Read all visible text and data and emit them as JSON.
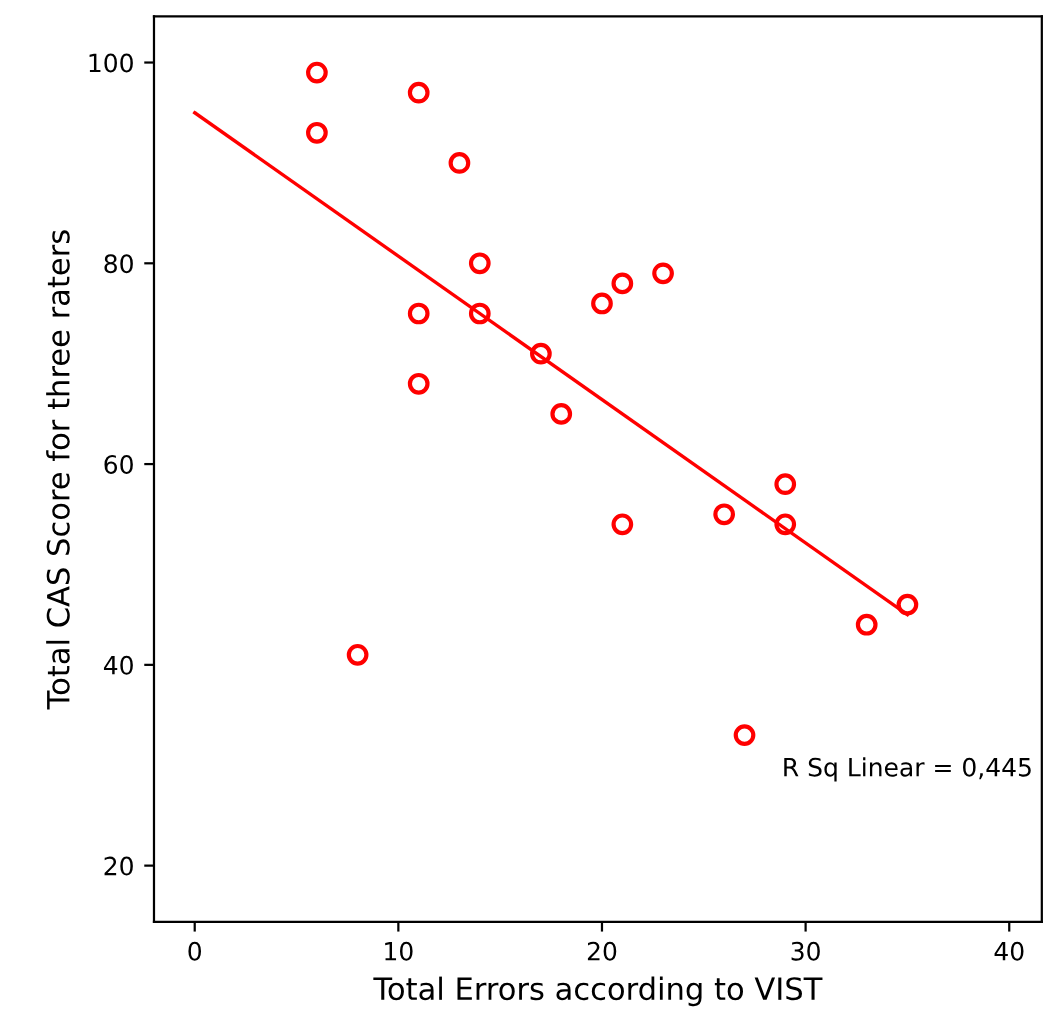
{
  "chart_data": {
    "type": "scatter",
    "xlabel": "Total Errors according to VIST",
    "ylabel": "Total CAS Score for three raters",
    "xlim": [
      -2,
      41.6
    ],
    "ylim": [
      14.4,
      104.6
    ],
    "xticks": [
      0,
      10,
      20,
      30,
      40
    ],
    "yticks": [
      20,
      40,
      60,
      80,
      100
    ],
    "grid": false,
    "series": [
      {
        "marker": "circle",
        "color": "#ff0000",
        "x": [
          6,
          6,
          11,
          13,
          14,
          11,
          14,
          11,
          8,
          17,
          18,
          20,
          21,
          23,
          21,
          26,
          29,
          29,
          33,
          35,
          27
        ],
        "values": [
          99,
          93,
          97,
          90,
          80,
          75,
          75,
          68,
          41,
          71,
          65,
          76,
          78,
          79,
          54,
          55,
          58,
          54,
          44,
          46,
          33
        ]
      },
      {
        "type": "line",
        "marker": "none",
        "color": "#ff0000",
        "x": [
          0,
          35
        ],
        "values": [
          95,
          45
        ]
      }
    ],
    "annotations": [
      "R Sq Linear = 0,445"
    ]
  }
}
